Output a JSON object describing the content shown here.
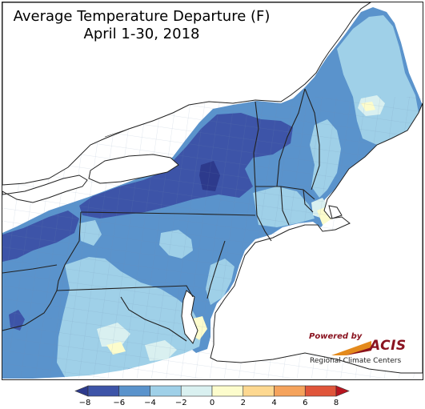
{
  "title": {
    "line1": "Average Temperature Departure (F)",
    "line2": "April 1-30, 2018"
  },
  "branding": {
    "powered_by": "Powered by",
    "logo_text": "ACIS",
    "subtitle": "Regional Climate Centers"
  },
  "legend": {
    "ticks": [
      "−8",
      "−6",
      "−4",
      "−2",
      "0",
      "2",
      "4",
      "6",
      "8"
    ],
    "bins": [
      {
        "range": [
          -8,
          -6
        ],
        "color": "#3d54a8"
      },
      {
        "range": [
          -6,
          -4
        ],
        "color": "#5a93cc"
      },
      {
        "range": [
          -4,
          -2
        ],
        "color": "#9fd0e8"
      },
      {
        "range": [
          -2,
          0
        ],
        "color": "#d9f0f0"
      },
      {
        "range": [
          0,
          2
        ],
        "color": "#fcfccc"
      },
      {
        "range": [
          2,
          4
        ],
        "color": "#fdd890"
      },
      {
        "range": [
          4,
          6
        ],
        "color": "#f5a35c"
      },
      {
        "range": [
          6,
          8
        ],
        "color": "#e0553a"
      }
    ],
    "under_color": "#2d3a8c",
    "over_color": "#b8151f"
  },
  "colors": {
    "water": "#ffffff",
    "boundary": "#222222",
    "county_lines": "#6f8db0"
  }
}
